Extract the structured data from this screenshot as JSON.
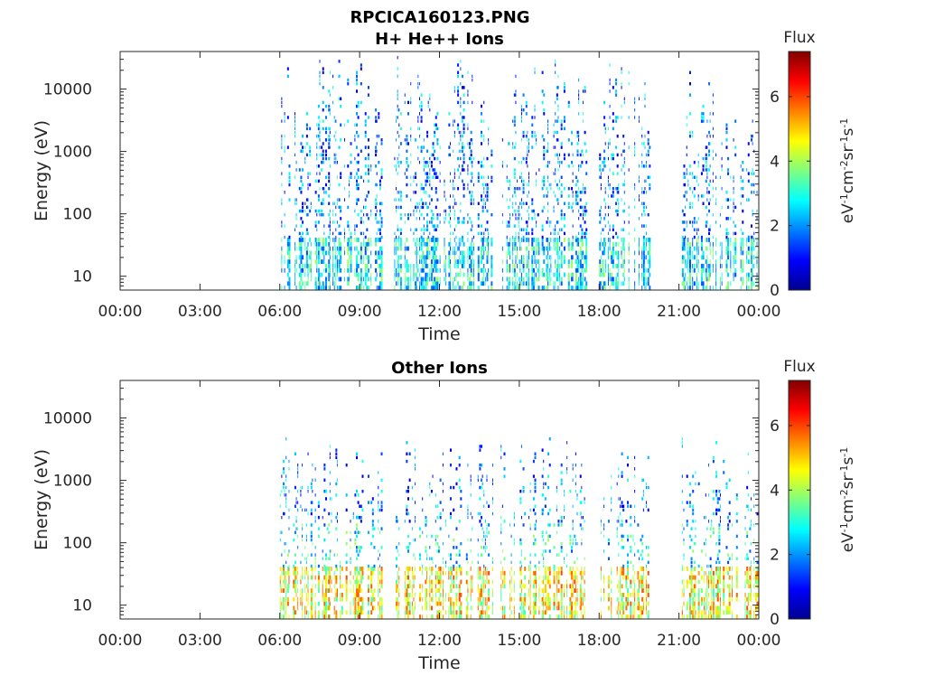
{
  "figure": {
    "title": "RPCICA160123.PNG"
  },
  "chart_data": [
    {
      "type": "heatmap",
      "title": "H+ He++ Ions",
      "xlabel": "Time",
      "ylabel": "Energy (eV)",
      "x_ticks": [
        "00:00",
        "03:00",
        "06:00",
        "09:00",
        "12:00",
        "15:00",
        "18:00",
        "21:00",
        "00:00"
      ],
      "x_range_hours": [
        0,
        24
      ],
      "y_scale": "log",
      "y_ticks": [
        "10",
        "100",
        "1000",
        "10000"
      ],
      "y_range": [
        6,
        40000
      ],
      "colorbar": {
        "title": "Flux",
        "label": "eV-1cm-2sr-1s-1",
        "ticks": [
          "0",
          "2",
          "4",
          "6"
        ],
        "range": [
          0,
          7.4
        ],
        "colormap": "jet"
      },
      "data_intervals_hours": [
        [
          6.0,
          9.8
        ],
        [
          10.3,
          14.0
        ],
        [
          14.3,
          17.5
        ],
        [
          18.0,
          19.9
        ],
        [
          21.0,
          24.0
        ]
      ],
      "dominant_flux": "1-3 (blue-cyan), up to ~4 below 30 eV"
    },
    {
      "type": "heatmap",
      "title": "Other Ions",
      "xlabel": "Time",
      "ylabel": "Energy (eV)",
      "x_ticks": [
        "00:00",
        "03:00",
        "06:00",
        "09:00",
        "12:00",
        "15:00",
        "18:00",
        "21:00",
        "00:00"
      ],
      "x_range_hours": [
        0,
        24
      ],
      "y_scale": "log",
      "y_ticks": [
        "10",
        "100",
        "1000",
        "10000"
      ],
      "y_range": [
        6,
        40000
      ],
      "colorbar": {
        "title": "Flux",
        "label": "eV-1cm-2sr-1s-1",
        "ticks": [
          "0",
          "2",
          "4",
          "6"
        ],
        "range": [
          0,
          7.4
        ],
        "colormap": "jet"
      },
      "data_intervals_hours": [
        [
          6.0,
          9.8
        ],
        [
          10.3,
          14.0
        ],
        [
          14.3,
          17.5
        ],
        [
          18.0,
          19.9
        ],
        [
          21.0,
          24.0
        ]
      ],
      "dominant_flux": "3-6 (green-yellow-red) below 40 eV, 1-3 above"
    }
  ]
}
